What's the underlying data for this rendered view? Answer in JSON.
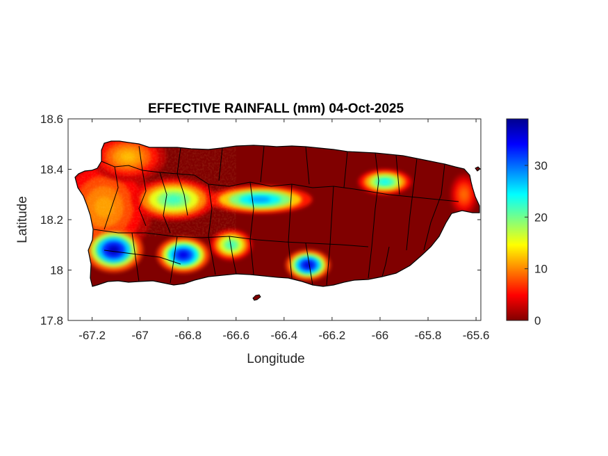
{
  "chart_data": {
    "type": "heatmap",
    "title": "EFFECTIVE RAINFALL (mm) 04-Oct-2025",
    "xlabel": "Longitude",
    "ylabel": "Latitude",
    "xlim": [
      -67.3,
      -65.58
    ],
    "ylim": [
      17.8,
      18.6
    ],
    "xticks": [
      -67.2,
      -67,
      -66.8,
      -66.6,
      -66.4,
      -66.2,
      -66,
      -65.8,
      -65.6
    ],
    "xtick_labels": [
      "-67.2",
      "-67",
      "-66.8",
      "-66.6",
      "-66.4",
      "-66.2",
      "-66",
      "-65.8",
      "-65.6"
    ],
    "yticks": [
      17.8,
      18,
      18.2,
      18.4,
      18.6
    ],
    "ytick_labels": [
      "17.8",
      "18",
      "18.2",
      "18.4",
      "18.6"
    ],
    "colorbar": {
      "colormap": "jet",
      "range": [
        0,
        39
      ],
      "ticks": [
        0,
        10,
        20,
        30
      ],
      "tick_labels": [
        "0",
        "10",
        "20",
        "30"
      ]
    },
    "background_value": 0,
    "rain_features": [
      {
        "region": "west coast band",
        "lon": -67.15,
        "lat": 18.25,
        "peak_mm": 11
      },
      {
        "region": "northwest",
        "lon": -67.05,
        "lat": 18.45,
        "peak_mm": 12
      },
      {
        "region": "southwest peak",
        "lon": -67.11,
        "lat": 18.08,
        "peak_mm": 37
      },
      {
        "region": "south-central west",
        "lon": -66.82,
        "lat": 18.06,
        "peak_mm": 35
      },
      {
        "region": "south-central",
        "lon": -66.62,
        "lat": 18.1,
        "peak_mm": 22
      },
      {
        "region": "central west",
        "lon": -66.86,
        "lat": 18.28,
        "peak_mm": 22
      },
      {
        "region": "central band",
        "lon": -66.5,
        "lat": 18.28,
        "peak_mm": 28
      },
      {
        "region": "south coast",
        "lon": -66.3,
        "lat": 18.02,
        "peak_mm": 36
      },
      {
        "region": "northeast",
        "lon": -65.98,
        "lat": 18.35,
        "peak_mm": 24
      },
      {
        "region": "east coast",
        "lon": -65.65,
        "lat": 18.3,
        "peak_mm": 9
      }
    ]
  }
}
